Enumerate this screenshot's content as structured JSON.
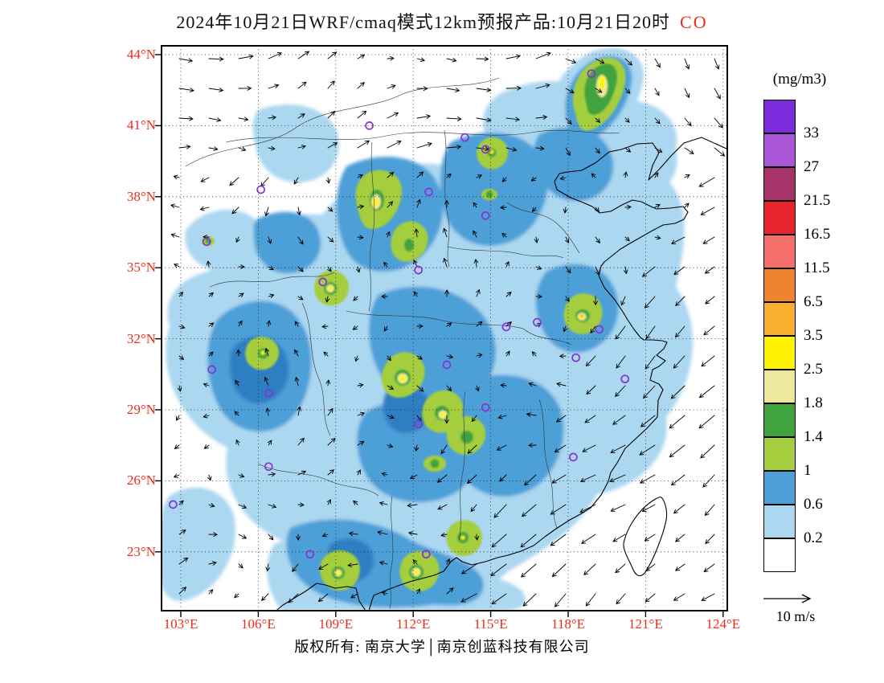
{
  "title": {
    "text": "2024年10月21日WRF/cmaq模式12km预报产品:10月21日20时",
    "species": "CO"
  },
  "legend": {
    "units": "(mg/m3)",
    "boxes": [
      {
        "color": "#7c2bdc",
        "label": "33"
      },
      {
        "color": "#a855d6",
        "label": "27"
      },
      {
        "color": "#a63468",
        "label": "21.5"
      },
      {
        "color": "#e8242c",
        "label": "16.5"
      },
      {
        "color": "#f46e6a",
        "label": "11.5"
      },
      {
        "color": "#f0832e",
        "label": "6.5"
      },
      {
        "color": "#fbaf2e",
        "label": "3.5"
      },
      {
        "color": "#fff400",
        "label": "2.5"
      },
      {
        "color": "#ede89b",
        "label": "1.8"
      },
      {
        "color": "#3fa33f",
        "label": "1.4"
      },
      {
        "color": "#a4ce3e",
        "label": "1"
      },
      {
        "color": "#4e9fd8",
        "label": "0.6"
      },
      {
        "color": "#abd7f0",
        "label": "0.2"
      },
      {
        "color": "#ffffff",
        "label": ""
      }
    ]
  },
  "axes": {
    "lat": [
      "44°N",
      "41°N",
      "38°N",
      "35°N",
      "32°N",
      "29°N",
      "26°N",
      "23°N"
    ],
    "lon": [
      "103°E",
      "106°E",
      "109°E",
      "112°E",
      "115°E",
      "118°E",
      "121°E",
      "124°E"
    ]
  },
  "wind_scale": {
    "label": "10  m/s"
  },
  "footer": {
    "text": "版权所有: 南京大学│南京创蓝科技有限公司"
  },
  "colors": {
    "axis_label_red": "#ee2c1c",
    "species_red": "#ee2c1c",
    "city_marker_purple": "#8b30d8"
  },
  "map": {
    "pollutant": "CO",
    "model": "WRF/cmaq 12km",
    "lon_range_deg_e": [
      103,
      124
    ],
    "lat_range_deg_n": [
      23,
      44
    ],
    "city_markers": [
      [
        110.3,
        41.0
      ],
      [
        114.8,
        40.0
      ],
      [
        114.0,
        40.5
      ],
      [
        118.9,
        43.2
      ],
      [
        106.1,
        38.3
      ],
      [
        112.6,
        38.2
      ],
      [
        114.8,
        37.2
      ],
      [
        104.0,
        36.1
      ],
      [
        112.2,
        34.9
      ],
      [
        108.5,
        34.4
      ],
      [
        115.6,
        32.5
      ],
      [
        116.8,
        32.7
      ],
      [
        119.2,
        32.4
      ],
      [
        118.3,
        31.2
      ],
      [
        120.2,
        30.3
      ],
      [
        113.3,
        30.9
      ],
      [
        104.2,
        30.7
      ],
      [
        106.4,
        29.7
      ],
      [
        114.8,
        29.1
      ],
      [
        112.2,
        28.4
      ],
      [
        118.2,
        27.0
      ],
      [
        106.4,
        26.6
      ],
      [
        102.7,
        25.0
      ],
      [
        108.0,
        22.9
      ],
      [
        112.5,
        22.9
      ]
    ],
    "concentration_levels_mgm3": [
      0.2,
      0.6,
      1,
      1.4,
      1.8,
      2.5,
      3.5,
      6.5,
      11.5,
      16.5,
      21.5,
      27,
      33
    ]
  }
}
